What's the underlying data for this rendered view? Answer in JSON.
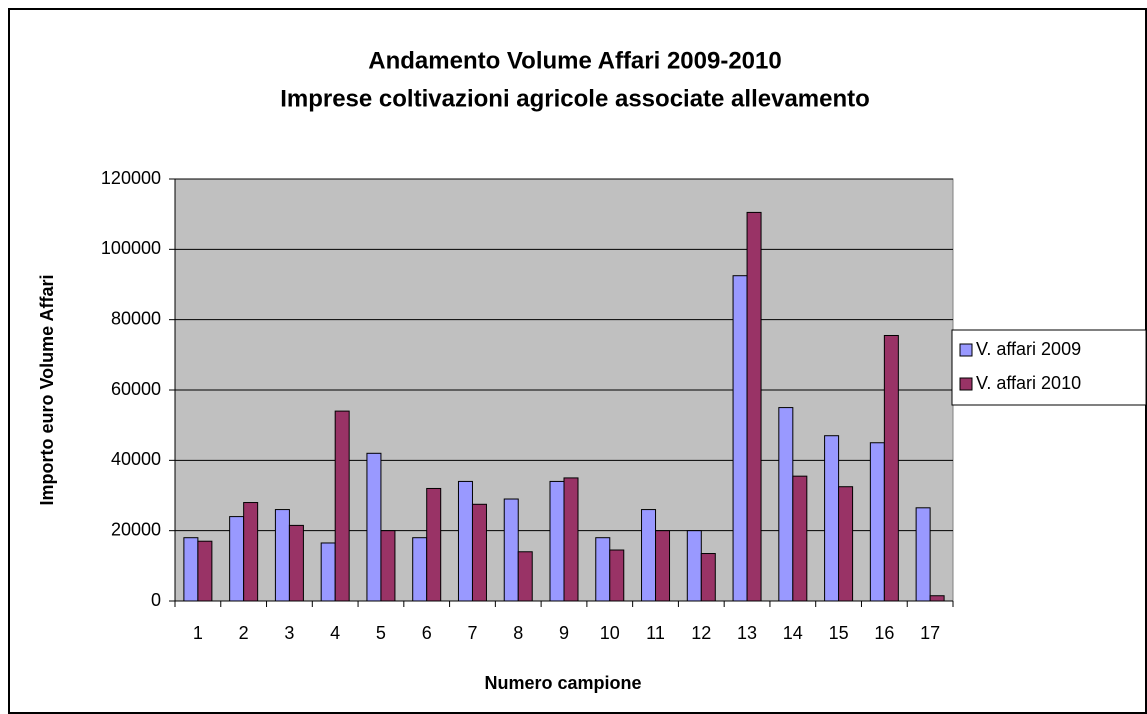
{
  "chart_data": {
    "type": "bar",
    "title": "Andamento Volume Affari 2009-2010",
    "subtitle": "Imprese coltivazioni agricole associate allevamento",
    "x_label": "Numero campione",
    "y_label": "Importo euro Volume Affari",
    "categories": [
      "1",
      "2",
      "3",
      "4",
      "5",
      "6",
      "7",
      "8",
      "9",
      "10",
      "11",
      "12",
      "13",
      "14",
      "15",
      "16",
      "17"
    ],
    "series": [
      {
        "name": "V. affari 2009",
        "color": "#9999ff",
        "values": [
          18000,
          24000,
          26000,
          16500,
          42000,
          18000,
          34000,
          29000,
          34000,
          18000,
          26000,
          20000,
          92500,
          55000,
          47000,
          45000,
          26500
        ]
      },
      {
        "name": "V. affari 2010",
        "color": "#993366",
        "values": [
          17000,
          28000,
          21500,
          54000,
          20000,
          32000,
          27500,
          14000,
          35000,
          14500,
          20000,
          13500,
          110500,
          35500,
          32500,
          75500,
          1500
        ]
      }
    ],
    "ylim": [
      0,
      120000
    ],
    "yticks": [
      0,
      20000,
      40000,
      60000,
      80000,
      100000,
      120000
    ],
    "grid": true,
    "plot_background": "#c0c0c0",
    "legend": "right"
  }
}
